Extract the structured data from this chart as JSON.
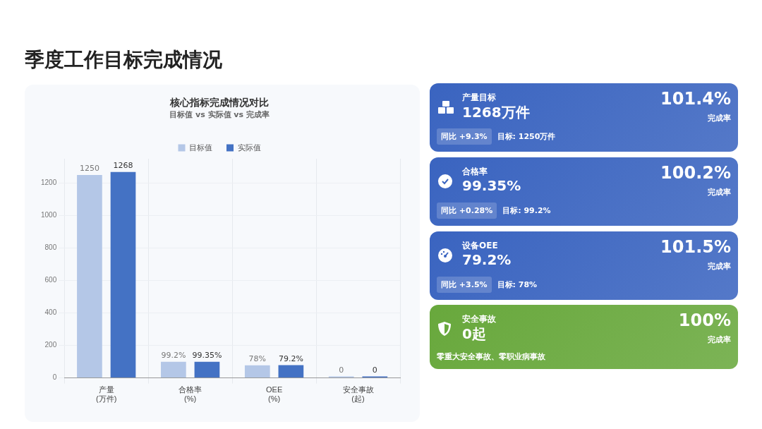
{
  "chart_data": [
    {
      "type": "other",
      "title": "季度工作目标完成情况"
    },
    {
      "type": "bar",
      "title": "核心指标完成情况对比",
      "subtitle": "目标值 vs 实际值 vs 完成率",
      "categories": [
        "产量\n(万件)",
        "合格率\n(%)",
        "OEE\n(%)",
        "安全事故\n(起)"
      ],
      "series": [
        {
          "name": "目标值",
          "color": "#b4c7e7",
          "values": [
            1250,
            99.2,
            78,
            0
          ],
          "value_labels": [
            "1250",
            "99.2%",
            "78%",
            "0"
          ]
        },
        {
          "name": "实际值",
          "color": "#4472c4",
          "values": [
            1268,
            99.35,
            79.2,
            0
          ],
          "value_labels": [
            "1268",
            "99.35%",
            "79.2%",
            "0"
          ]
        }
      ],
      "ylim": [
        0,
        1350
      ],
      "yticks": [
        0,
        200,
        400,
        600,
        800,
        1000,
        1200
      ],
      "grid": true,
      "legend": "top"
    },
    {
      "type": "other",
      "title": "产量目标",
      "subtitle": "1268万件",
      "annotations": [
        "101.4%",
        "完成率",
        "同比 +9.3%",
        "目标: 1250万件"
      ],
      "color": "#3a64c0"
    },
    {
      "type": "other",
      "title": "合格率",
      "subtitle": "99.35%",
      "annotations": [
        "100.2%",
        "完成率",
        "同比 +0.28%",
        "目标: 99.2%"
      ],
      "color": "#3a64c0"
    },
    {
      "type": "other",
      "title": "设备OEE",
      "subtitle": "79.2%",
      "annotations": [
        "101.5%",
        "完成率",
        "同比 +3.5%",
        "目标: 78%"
      ],
      "color": "#3a64c0"
    },
    {
      "type": "other",
      "title": "安全事故",
      "subtitle": "0起",
      "annotations": [
        "100%",
        "完成率",
        "零重大安全事故、零职业病事故"
      ],
      "color": "#68a83c"
    }
  ]
}
